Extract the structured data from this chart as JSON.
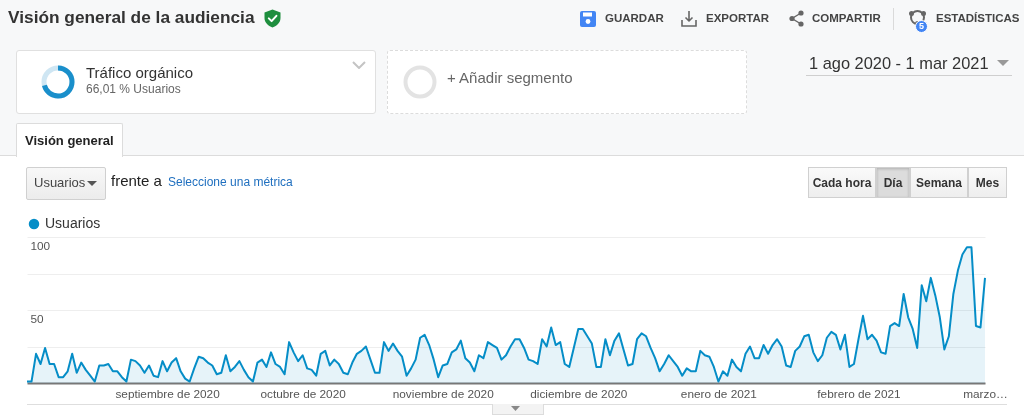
{
  "chart_data": {
    "type": "area",
    "title": "Visión general de la audiencia",
    "annotations": [
      "GUARDAR",
      "EXPORTAR",
      "COMPARTIR",
      "ESTADÍSTICAS",
      "5",
      "Tráfico orgánico",
      "66,01 % Usuarios",
      "+ Añadir segmento",
      "1 ago 2020 - 1 mar 2021",
      "Visión general",
      "Usuarios",
      "frente a",
      "Seleccione una métrica",
      "Cada hora",
      "Día",
      "Semana",
      "Mes"
    ],
    "x": [
      "2020-08-01",
      "2020-08-02",
      "2020-08-03",
      "2020-08-04",
      "2020-08-05",
      "2020-08-06",
      "2020-08-07",
      "2020-08-08",
      "2020-08-09",
      "2020-08-10",
      "2020-08-11",
      "2020-08-12",
      "2020-08-13",
      "2020-08-14",
      "2020-08-15",
      "2020-08-16",
      "2020-08-17",
      "2020-08-18",
      "2020-08-19",
      "2020-08-20",
      "2020-08-21",
      "2020-08-22",
      "2020-08-23",
      "2020-08-24",
      "2020-08-25",
      "2020-08-26",
      "2020-08-27",
      "2020-08-28",
      "2020-08-29",
      "2020-08-30",
      "2020-08-31",
      "2020-09-01",
      "2020-09-02",
      "2020-09-03",
      "2020-09-04",
      "2020-09-05",
      "2020-09-06",
      "2020-09-07",
      "2020-09-08",
      "2020-09-09",
      "2020-09-10",
      "2020-09-11",
      "2020-09-12",
      "2020-09-13",
      "2020-09-14",
      "2020-09-15",
      "2020-09-16",
      "2020-09-17",
      "2020-09-18",
      "2020-09-19",
      "2020-09-20",
      "2020-09-21",
      "2020-09-22",
      "2020-09-23",
      "2020-09-24",
      "2020-09-25",
      "2020-09-26",
      "2020-09-27",
      "2020-09-28",
      "2020-09-29",
      "2020-09-30",
      "2020-10-01",
      "2020-10-02",
      "2020-10-03",
      "2020-10-04",
      "2020-10-05",
      "2020-10-06",
      "2020-10-07",
      "2020-10-08",
      "2020-10-09",
      "2020-10-10",
      "2020-10-11",
      "2020-10-12",
      "2020-10-13",
      "2020-10-14",
      "2020-10-15",
      "2020-10-16",
      "2020-10-17",
      "2020-10-18",
      "2020-10-19",
      "2020-10-20",
      "2020-10-21",
      "2020-10-22",
      "2020-10-23",
      "2020-10-24",
      "2020-10-25",
      "2020-10-26",
      "2020-10-27",
      "2020-10-28",
      "2020-10-29",
      "2020-10-30",
      "2020-10-31",
      "2020-11-01",
      "2020-11-02",
      "2020-11-03",
      "2020-11-04",
      "2020-11-05",
      "2020-11-06",
      "2020-11-07",
      "2020-11-08",
      "2020-11-09",
      "2020-11-10",
      "2020-11-11",
      "2020-11-12",
      "2020-11-13",
      "2020-11-14",
      "2020-11-15",
      "2020-11-16",
      "2020-11-17",
      "2020-11-18",
      "2020-11-19",
      "2020-11-20",
      "2020-11-21",
      "2020-11-22",
      "2020-11-23",
      "2020-11-24",
      "2020-11-25",
      "2020-11-26",
      "2020-11-27",
      "2020-11-28",
      "2020-11-29",
      "2020-11-30",
      "2020-12-01",
      "2020-12-02",
      "2020-12-03",
      "2020-12-04",
      "2020-12-05",
      "2020-12-06",
      "2020-12-07",
      "2020-12-08",
      "2020-12-09",
      "2020-12-10",
      "2020-12-11",
      "2020-12-12",
      "2020-12-13",
      "2020-12-14",
      "2020-12-15",
      "2020-12-16",
      "2020-12-17",
      "2020-12-18",
      "2020-12-19",
      "2020-12-20",
      "2020-12-21",
      "2020-12-22",
      "2020-12-23",
      "2020-12-24",
      "2020-12-25",
      "2020-12-26",
      "2020-12-27",
      "2020-12-28",
      "2020-12-29",
      "2020-12-30",
      "2020-12-31",
      "2021-01-01",
      "2021-01-02",
      "2021-01-03",
      "2021-01-04",
      "2021-01-05",
      "2021-01-06",
      "2021-01-07",
      "2021-01-08",
      "2021-01-09",
      "2021-01-10",
      "2021-01-11",
      "2021-01-12",
      "2021-01-13",
      "2021-01-14",
      "2021-01-15",
      "2021-01-16",
      "2021-01-17",
      "2021-01-18",
      "2021-01-19",
      "2021-01-20",
      "2021-01-21",
      "2021-01-22",
      "2021-01-23",
      "2021-01-24",
      "2021-01-25",
      "2021-01-26",
      "2021-01-27",
      "2021-01-28",
      "2021-01-29",
      "2021-01-30",
      "2021-01-31",
      "2021-02-01",
      "2021-02-02",
      "2021-02-03",
      "2021-02-04",
      "2021-02-05",
      "2021-02-06",
      "2021-02-07",
      "2021-02-08",
      "2021-02-09",
      "2021-02-10",
      "2021-02-11",
      "2021-02-12",
      "2021-02-13",
      "2021-02-14",
      "2021-02-15",
      "2021-02-16",
      "2021-02-17",
      "2021-02-18",
      "2021-02-19",
      "2021-02-20",
      "2021-02-21",
      "2021-02-22",
      "2021-02-23",
      "2021-02-24",
      "2021-02-25",
      "2021-02-26",
      "2021-02-27",
      "2021-02-28",
      "2021-03-01"
    ],
    "series": [
      {
        "name": "Usuarios",
        "color": "#058dc7",
        "values": [
          1,
          1,
          20,
          13,
          24,
          13,
          13,
          4,
          4,
          8,
          20,
          7,
          14,
          9,
          5,
          1,
          12,
          12,
          13,
          8,
          8,
          4,
          1,
          16,
          15,
          12,
          7,
          12,
          5,
          4,
          15,
          8,
          14,
          17,
          8,
          3,
          1,
          10,
          18,
          17,
          14,
          12,
          6,
          7,
          19,
          8,
          11,
          15,
          9,
          4,
          1,
          14,
          16,
          11,
          21,
          13,
          11,
          6,
          28,
          21,
          15,
          19,
          10,
          9,
          5,
          20,
          22,
          12,
          16,
          13,
          7,
          6,
          14,
          20,
          22,
          25,
          16,
          7,
          7,
          28,
          22,
          27,
          22,
          18,
          5,
          10,
          16,
          31,
          33,
          26,
          16,
          4,
          12,
          13,
          21,
          23,
          29,
          17,
          14,
          8,
          19,
          17,
          28,
          26,
          24,
          16,
          19,
          25,
          30,
          30,
          24,
          16,
          15,
          13,
          30,
          25,
          38,
          26,
          28,
          13,
          11,
          24,
          37,
          37,
          32,
          27,
          11,
          11,
          30,
          19,
          29,
          34,
          23,
          12,
          13,
          30,
          34,
          32,
          24,
          17,
          8,
          13,
          19,
          15,
          11,
          5,
          10,
          8,
          8,
          22,
          19,
          18,
          11,
          1,
          8,
          5,
          16,
          11,
          8,
          20,
          25,
          17,
          17,
          26,
          20,
          26,
          30,
          25,
          12,
          11,
          22,
          25,
          32,
          33,
          21,
          15,
          19,
          31,
          35,
          33,
          23,
          33,
          11,
          13,
          30,
          46,
          30,
          33,
          29,
          21,
          20,
          39,
          41,
          39,
          61,
          45,
          37,
          24,
          67,
          56,
          72,
          60,
          45,
          23,
          32,
          61,
          77,
          88,
          93,
          93,
          39,
          38,
          72
        ]
      }
    ],
    "xlim": [
      "2020-08-01",
      "2021-03-01"
    ],
    "xticks": [
      {
        "value": "2020-09-01",
        "label": "septiembre de 2020"
      },
      {
        "value": "2020-10-01",
        "label": "octubre de 2020"
      },
      {
        "value": "2020-11-01",
        "label": "noviembre de 2020"
      },
      {
        "value": "2020-12-01",
        "label": "diciembre de 2020"
      },
      {
        "value": "2021-01-01",
        "label": "enero de 2021"
      },
      {
        "value": "2021-02-01",
        "label": "febrero de 2021"
      },
      {
        "value": "2021-03-01",
        "label": "marzo…"
      }
    ],
    "ylim": [
      0,
      100
    ],
    "yticks": [
      {
        "value": 0,
        "label": null
      },
      {
        "value": 25,
        "label": null
      },
      50,
      {
        "value": 75,
        "label": null
      },
      100
    ],
    "grid": "y",
    "legend": "top left"
  }
}
